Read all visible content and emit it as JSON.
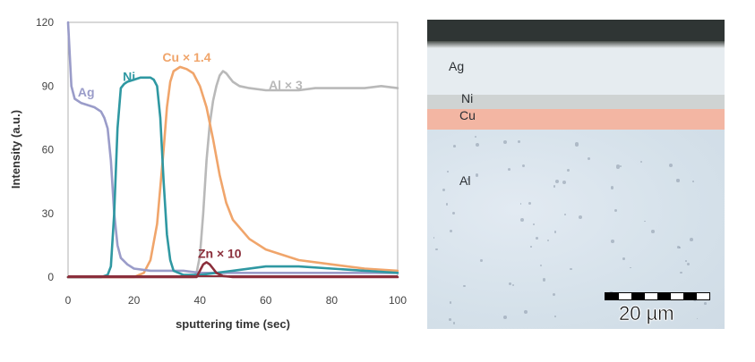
{
  "chart_data": {
    "type": "line",
    "xlabel": "sputtering time (sec)",
    "ylabel": "Intensity (a.u.)",
    "xlim": [
      0,
      100
    ],
    "ylim": [
      0,
      120
    ],
    "xticks": [
      "0",
      "20",
      "40",
      "60",
      "80",
      "100"
    ],
    "yticks": [
      "0",
      "30",
      "60",
      "90",
      "120"
    ],
    "grid": false,
    "series": [
      {
        "name": "Ag",
        "color": "#9a9cc9",
        "x": [
          0,
          1,
          2,
          4,
          6,
          8,
          10,
          11,
          12,
          13,
          14,
          15,
          16,
          18,
          20,
          25,
          30,
          35,
          40,
          50,
          60,
          70,
          80,
          90,
          100
        ],
        "y": [
          120,
          90,
          84,
          82,
          81,
          80,
          78,
          75,
          70,
          55,
          30,
          15,
          9,
          6,
          4,
          3,
          3,
          3,
          2,
          2,
          2,
          2,
          2,
          2,
          2
        ]
      },
      {
        "name": "Ni",
        "color": "#2f98a2",
        "x": [
          0,
          10,
          12,
          13,
          14,
          15,
          16,
          17,
          18,
          20,
          22,
          25,
          26,
          27,
          28,
          29,
          30,
          31,
          32,
          35,
          40,
          50,
          60,
          70,
          80,
          90,
          100
        ],
        "y": [
          0,
          0,
          1,
          5,
          30,
          70,
          89,
          91,
          92,
          93,
          94,
          94,
          93,
          90,
          75,
          45,
          20,
          8,
          3,
          1,
          1,
          3,
          5,
          5,
          4,
          3,
          2
        ]
      },
      {
        "name": "Cu × 1.4",
        "color": "#f0a56b",
        "x": [
          0,
          20,
          23,
          25,
          27,
          29,
          30,
          31,
          32,
          34,
          36,
          38,
          40,
          42,
          44,
          46,
          48,
          50,
          55,
          60,
          70,
          80,
          90,
          100
        ],
        "y": [
          0,
          0,
          2,
          8,
          25,
          60,
          80,
          92,
          97,
          99,
          98,
          96,
          90,
          80,
          65,
          48,
          35,
          27,
          18,
          13,
          8,
          6,
          4,
          3
        ]
      },
      {
        "name": "Al × 3",
        "color": "#b9b9b9",
        "x": [
          0,
          30,
          38,
          39,
          40,
          41,
          42,
          43,
          44,
          45,
          46,
          47,
          48,
          49,
          50,
          52,
          55,
          60,
          65,
          70,
          75,
          80,
          85,
          90,
          95,
          100
        ],
        "y": [
          0,
          0,
          0,
          2,
          10,
          30,
          55,
          72,
          83,
          90,
          95,
          97,
          96,
          94,
          92,
          90,
          89,
          88,
          88,
          88,
          89,
          89,
          89,
          89,
          90,
          89
        ]
      },
      {
        "name": "Zn × 10",
        "color": "#8b2f3b",
        "x": [
          0,
          39,
          40,
          41,
          42,
          43,
          44,
          45,
          47,
          50,
          100
        ],
        "y": [
          0,
          0,
          3,
          6,
          7,
          6,
          4,
          2,
          0.5,
          0,
          0
        ]
      }
    ],
    "annotations": [
      {
        "text": "Ag",
        "series": "Ag"
      },
      {
        "text": "Ni",
        "series": "Ni"
      },
      {
        "text": "Cu × 1.4",
        "series": "Cu × 1.4"
      },
      {
        "text": "Al × 3",
        "series": "Al × 3"
      },
      {
        "text": "Zn × 10",
        "series": "Zn × 10"
      }
    ]
  },
  "micrograph": {
    "layers": [
      "Ag",
      "Ni",
      "Cu",
      "Al"
    ],
    "scale_bar": "20 µm"
  }
}
